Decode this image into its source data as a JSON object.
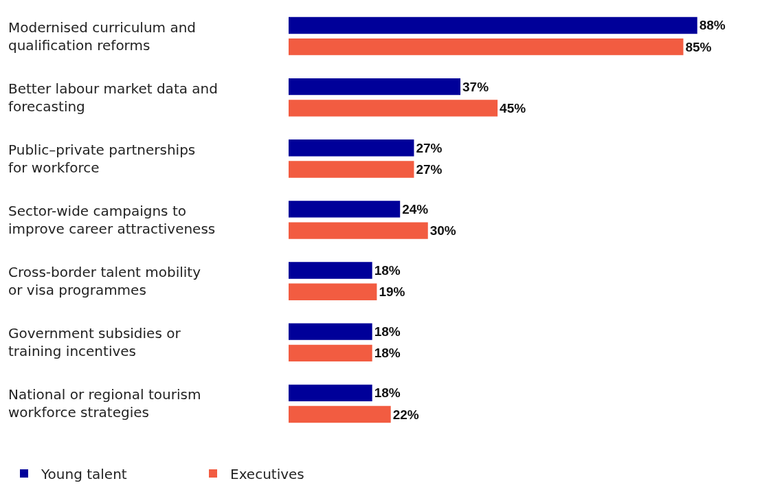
{
  "chart_data": {
    "type": "bar",
    "orientation": "horizontal",
    "categories": [
      "Modernised curriculum and qualification reforms",
      "Better labour market data and forecasting",
      "Public–private partnerships for workforce",
      "Sector-wide campaigns to improve career attractiveness",
      "Cross-border talent mobility or visa programmes",
      "Government subsidies or training incentives",
      "National or regional tourism workforce strategies"
    ],
    "series": [
      {
        "name": "Young talent",
        "color": "#000099",
        "values": [
          88,
          37,
          27,
          24,
          18,
          18,
          18
        ],
        "value_labels": [
          "88%",
          "37%",
          "27%",
          "24%",
          "18%",
          "18%",
          "18%"
        ]
      },
      {
        "name": "Executives",
        "color": "#f25c41",
        "values": [
          85,
          45,
          27,
          30,
          19,
          18,
          22
        ],
        "value_labels": [
          "85%",
          "45%",
          "27%",
          "30%",
          "19%",
          "18%",
          "22%"
        ]
      }
    ],
    "legend": "bottom left",
    "grid": false
  }
}
